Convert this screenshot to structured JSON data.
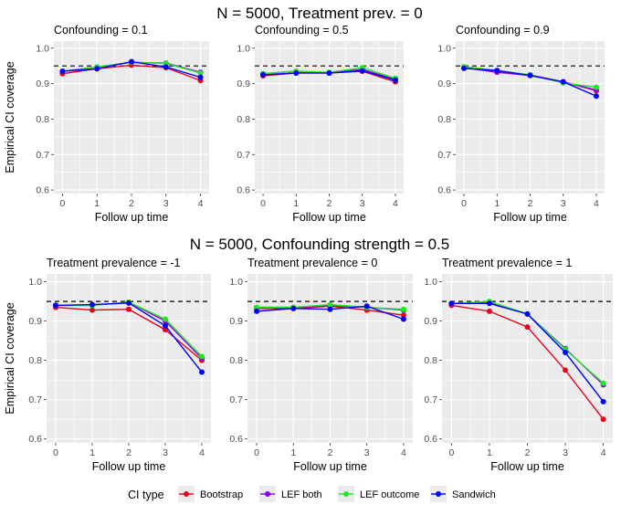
{
  "colors": {
    "panel_bg": "#EBEBEB",
    "grid": "#FFFFFF",
    "text": "#000000",
    "tick_text": "#4D4D4D",
    "Bootstrap": "#E8001F",
    "LEF both": "#8A00E6",
    "LEF outcome": "#22E822",
    "Sandwich": "#0000FF",
    "reference_line": "#000000"
  },
  "legend": {
    "title": "CI type",
    "placement": "bottom",
    "entries": [
      "Bootstrap",
      "LEF both",
      "LEF outcome",
      "Sandwich"
    ]
  },
  "chart_data": [
    {
      "type": "line",
      "row_title": "N = 5000, Treatment prev. = 0",
      "title": "Confounding = 0.1",
      "xlabel": "Follow up time",
      "ylabel": "Empirical CI coverage",
      "x": [
        0,
        1,
        2,
        3,
        4
      ],
      "xticks": [
        "0",
        "1",
        "2",
        "3",
        "4"
      ],
      "yticks": [
        "0.6",
        "0.7",
        "0.8",
        "0.9",
        "1.0"
      ],
      "ylim": [
        0.59,
        1.02
      ],
      "reference": 0.95,
      "series": [
        {
          "name": "Bootstrap",
          "values": [
            0.928,
            0.942,
            0.952,
            0.945,
            0.909
          ]
        },
        {
          "name": "LEF both",
          "values": [
            0.935,
            0.947,
            0.96,
            0.958,
            0.932
          ]
        },
        {
          "name": "LEF outcome",
          "values": [
            0.935,
            0.947,
            0.96,
            0.957,
            0.93
          ]
        },
        {
          "name": "Sandwich",
          "values": [
            0.935,
            0.942,
            0.962,
            0.947,
            0.918
          ]
        }
      ]
    },
    {
      "type": "line",
      "title": "Confounding = 0.5",
      "xlabel": "Follow up time",
      "ylabel": "",
      "x": [
        0,
        1,
        2,
        3,
        4
      ],
      "xticks": [
        "0",
        "1",
        "2",
        "3",
        "4"
      ],
      "yticks": [
        "0.6",
        "0.7",
        "0.8",
        "0.9",
        "1.0"
      ],
      "ylim": [
        0.59,
        1.02
      ],
      "reference": 0.95,
      "series": [
        {
          "name": "Bootstrap",
          "values": [
            0.922,
            0.93,
            0.93,
            0.935,
            0.905
          ]
        },
        {
          "name": "LEF both",
          "values": [
            0.928,
            0.935,
            0.93,
            0.94,
            0.912
          ]
        },
        {
          "name": "LEF outcome",
          "values": [
            0.928,
            0.935,
            0.932,
            0.945,
            0.915
          ]
        },
        {
          "name": "Sandwich",
          "values": [
            0.925,
            0.93,
            0.93,
            0.936,
            0.91
          ]
        }
      ]
    },
    {
      "type": "line",
      "title": "Confounding = 0.9",
      "xlabel": "Follow up time",
      "ylabel": "",
      "x": [
        0,
        1,
        2,
        3,
        4
      ],
      "xticks": [
        "0",
        "1",
        "2",
        "3",
        "4"
      ],
      "yticks": [
        "0.6",
        "0.7",
        "0.8",
        "0.9",
        "1.0"
      ],
      "ylim": [
        0.59,
        1.02
      ],
      "reference": 0.95,
      "series": [
        {
          "name": "Bootstrap",
          "values": [
            0.945,
            0.935,
            0.925,
            0.905,
            0.88
          ]
        },
        {
          "name": "LEF both",
          "values": [
            0.945,
            0.932,
            0.923,
            0.905,
            0.882
          ]
        },
        {
          "name": "LEF outcome",
          "values": [
            0.948,
            0.937,
            0.925,
            0.902,
            0.89
          ]
        },
        {
          "name": "Sandwich",
          "values": [
            0.943,
            0.937,
            0.923,
            0.905,
            0.865
          ]
        }
      ]
    },
    {
      "type": "line",
      "row_title": "N = 5000, Confounding strength = 0.5",
      "title": "Treatment prevalence = -1",
      "xlabel": "Follow up time",
      "ylabel": "Empirical CI coverage",
      "x": [
        0,
        1,
        2,
        3,
        4
      ],
      "xticks": [
        "0",
        "1",
        "2",
        "3",
        "4"
      ],
      "yticks": [
        "0.6",
        "0.7",
        "0.8",
        "0.9",
        "1.0"
      ],
      "ylim": [
        0.59,
        1.02
      ],
      "reference": 0.95,
      "series": [
        {
          "name": "Bootstrap",
          "values": [
            0.935,
            0.928,
            0.93,
            0.878,
            0.8
          ]
        },
        {
          "name": "LEF both",
          "values": [
            0.94,
            0.94,
            0.948,
            0.9,
            0.805
          ]
        },
        {
          "name": "LEF outcome",
          "values": [
            0.94,
            0.94,
            0.948,
            0.905,
            0.81
          ]
        },
        {
          "name": "Sandwich",
          "values": [
            0.94,
            0.942,
            0.946,
            0.888,
            0.77
          ]
        }
      ]
    },
    {
      "type": "line",
      "title": "Treatment prevalence = 0",
      "xlabel": "Follow up time",
      "ylabel": "",
      "x": [
        0,
        1,
        2,
        3,
        4
      ],
      "xticks": [
        "0",
        "1",
        "2",
        "3",
        "4"
      ],
      "yticks": [
        "0.6",
        "0.7",
        "0.8",
        "0.9",
        "1.0"
      ],
      "ylim": [
        0.59,
        1.02
      ],
      "reference": 0.95,
      "series": [
        {
          "name": "Bootstrap",
          "values": [
            0.932,
            0.932,
            0.938,
            0.928,
            0.915
          ]
        },
        {
          "name": "LEF both",
          "values": [
            0.935,
            0.935,
            0.94,
            0.935,
            0.928
          ]
        },
        {
          "name": "LEF outcome",
          "values": [
            0.935,
            0.935,
            0.942,
            0.935,
            0.93
          ]
        },
        {
          "name": "Sandwich",
          "values": [
            0.925,
            0.932,
            0.93,
            0.938,
            0.905
          ]
        }
      ]
    },
    {
      "type": "line",
      "title": "Treatment prevalence = 1",
      "xlabel": "Follow up time",
      "ylabel": "",
      "x": [
        0,
        1,
        2,
        3,
        4
      ],
      "xticks": [
        "0",
        "1",
        "2",
        "3",
        "4"
      ],
      "yticks": [
        "0.6",
        "0.7",
        "0.8",
        "0.9",
        "1.0"
      ],
      "ylim": [
        0.59,
        1.02
      ],
      "reference": 0.95,
      "series": [
        {
          "name": "Bootstrap",
          "values": [
            0.94,
            0.925,
            0.885,
            0.775,
            0.65
          ]
        },
        {
          "name": "LEF both",
          "values": [
            0.945,
            0.948,
            0.918,
            0.83,
            0.738
          ]
        },
        {
          "name": "LEF outcome",
          "values": [
            0.945,
            0.95,
            0.918,
            0.828,
            0.742
          ]
        },
        {
          "name": "Sandwich",
          "values": [
            0.945,
            0.945,
            0.918,
            0.82,
            0.695
          ]
        }
      ]
    }
  ]
}
